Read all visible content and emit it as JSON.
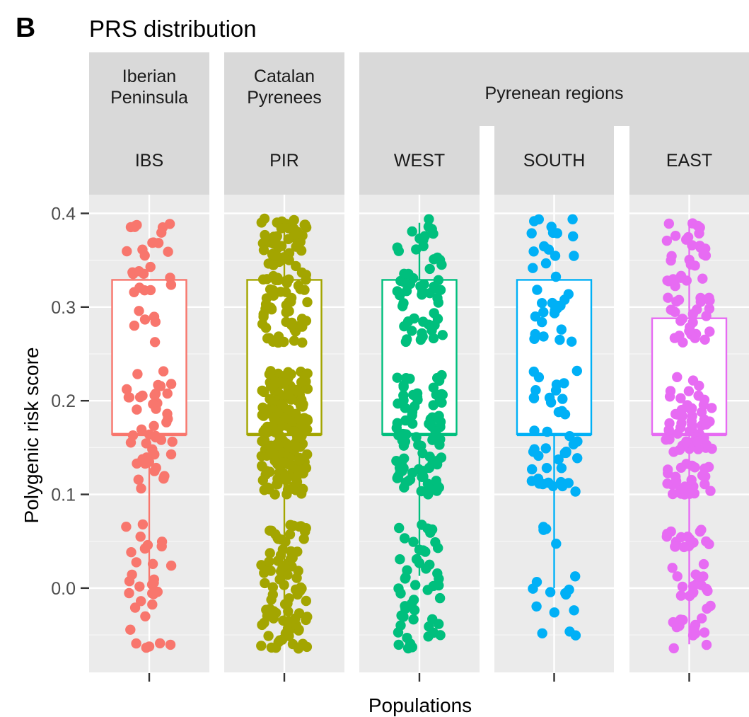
{
  "panel_label": "B",
  "chart_data": {
    "type": "boxplot",
    "title": "PRS distribution",
    "xlabel": "Populations",
    "ylabel": "Polygenic risk score",
    "ylim": [
      -0.09,
      0.42
    ],
    "yticks": [
      0.0,
      0.1,
      0.2,
      0.3,
      0.4
    ],
    "ytick_labels": [
      "0.0",
      "0.1",
      "0.2",
      "0.3",
      "0.4"
    ],
    "grid": true,
    "legend": "none",
    "facet_groups": [
      {
        "label": "Iberian\nPeninsula",
        "categories": [
          "IBS"
        ]
      },
      {
        "label": "Catalan\nPyrenees",
        "categories": [
          "PIR"
        ]
      },
      {
        "label": "Pyrenean regions",
        "categories": [
          "WEST",
          "SOUTH",
          "EAST"
        ]
      }
    ],
    "series": [
      {
        "category": "IBS",
        "color": "#F8766D",
        "n_points": 107,
        "box": {
          "whisker_low": 0.0,
          "q1": 0.164,
          "median": 0.164,
          "q3": 0.329,
          "whisker_high": 0.329
        }
      },
      {
        "category": "PIR",
        "color": "#A3A500",
        "n_points": 380,
        "box": {
          "whisker_low": -0.06,
          "q1": 0.164,
          "median": 0.164,
          "q3": 0.329,
          "whisker_high": 0.393
        }
      },
      {
        "category": "WEST",
        "color": "#00BF7D",
        "n_points": 200,
        "box": {
          "whisker_low": 0.013,
          "q1": 0.164,
          "median": 0.164,
          "q3": 0.329,
          "whisker_high": 0.39
        }
      },
      {
        "category": "SOUTH",
        "color": "#00B0F6",
        "n_points": 95,
        "box": {
          "whisker_low": 0.0,
          "q1": 0.164,
          "median": 0.164,
          "q3": 0.329,
          "whisker_high": 0.329
        }
      },
      {
        "category": "EAST",
        "color": "#E76BF3",
        "n_points": 180,
        "box": {
          "whisker_low": -0.06,
          "q1": 0.164,
          "median": 0.164,
          "q3": 0.288,
          "whisker_high": 0.393
        }
      }
    ]
  }
}
